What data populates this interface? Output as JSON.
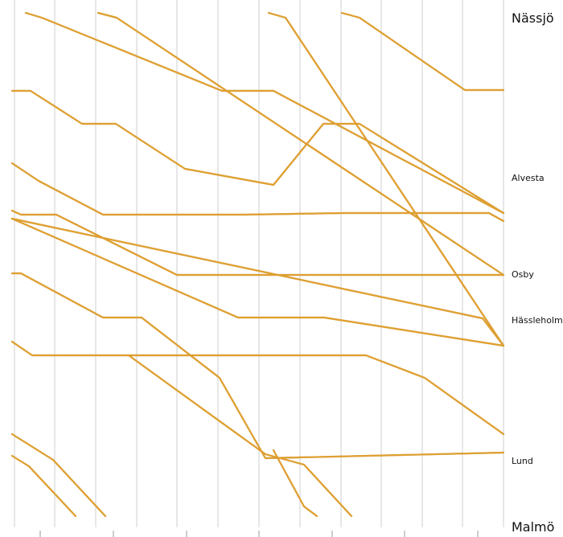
{
  "stations": [
    {
      "id": "nassjo",
      "name": "Nässjö",
      "major": true
    },
    {
      "id": "alvesta",
      "name": "Alvesta",
      "major": false
    },
    {
      "id": "osby",
      "name": "Osby",
      "major": false
    },
    {
      "id": "hassleholm",
      "name": "Hässleholm",
      "major": false
    },
    {
      "id": "lund",
      "name": "Lund",
      "major": false
    },
    {
      "id": "malmo",
      "name": "Malmö",
      "major": true
    }
  ],
  "colors": {
    "train": "#e0a030",
    "train_shadow": "#8a6a28",
    "grid": "#cfcfcf"
  }
}
